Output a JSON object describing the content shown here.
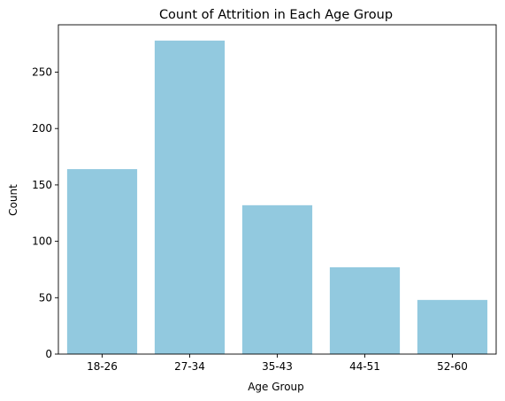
{
  "chart_data": {
    "type": "bar",
    "title": "Count of Attrition in Each Age Group",
    "xlabel": "Age Group",
    "ylabel": "Count",
    "categories": [
      "18-26",
      "27-34",
      "35-43",
      "44-51",
      "52-60"
    ],
    "values": [
      164,
      278,
      132,
      77,
      48
    ],
    "ylim": [
      0,
      292
    ],
    "yticks": [
      0,
      50,
      100,
      150,
      200,
      250
    ],
    "grid": false,
    "legend": "none",
    "bar_color": "#92c9df"
  }
}
